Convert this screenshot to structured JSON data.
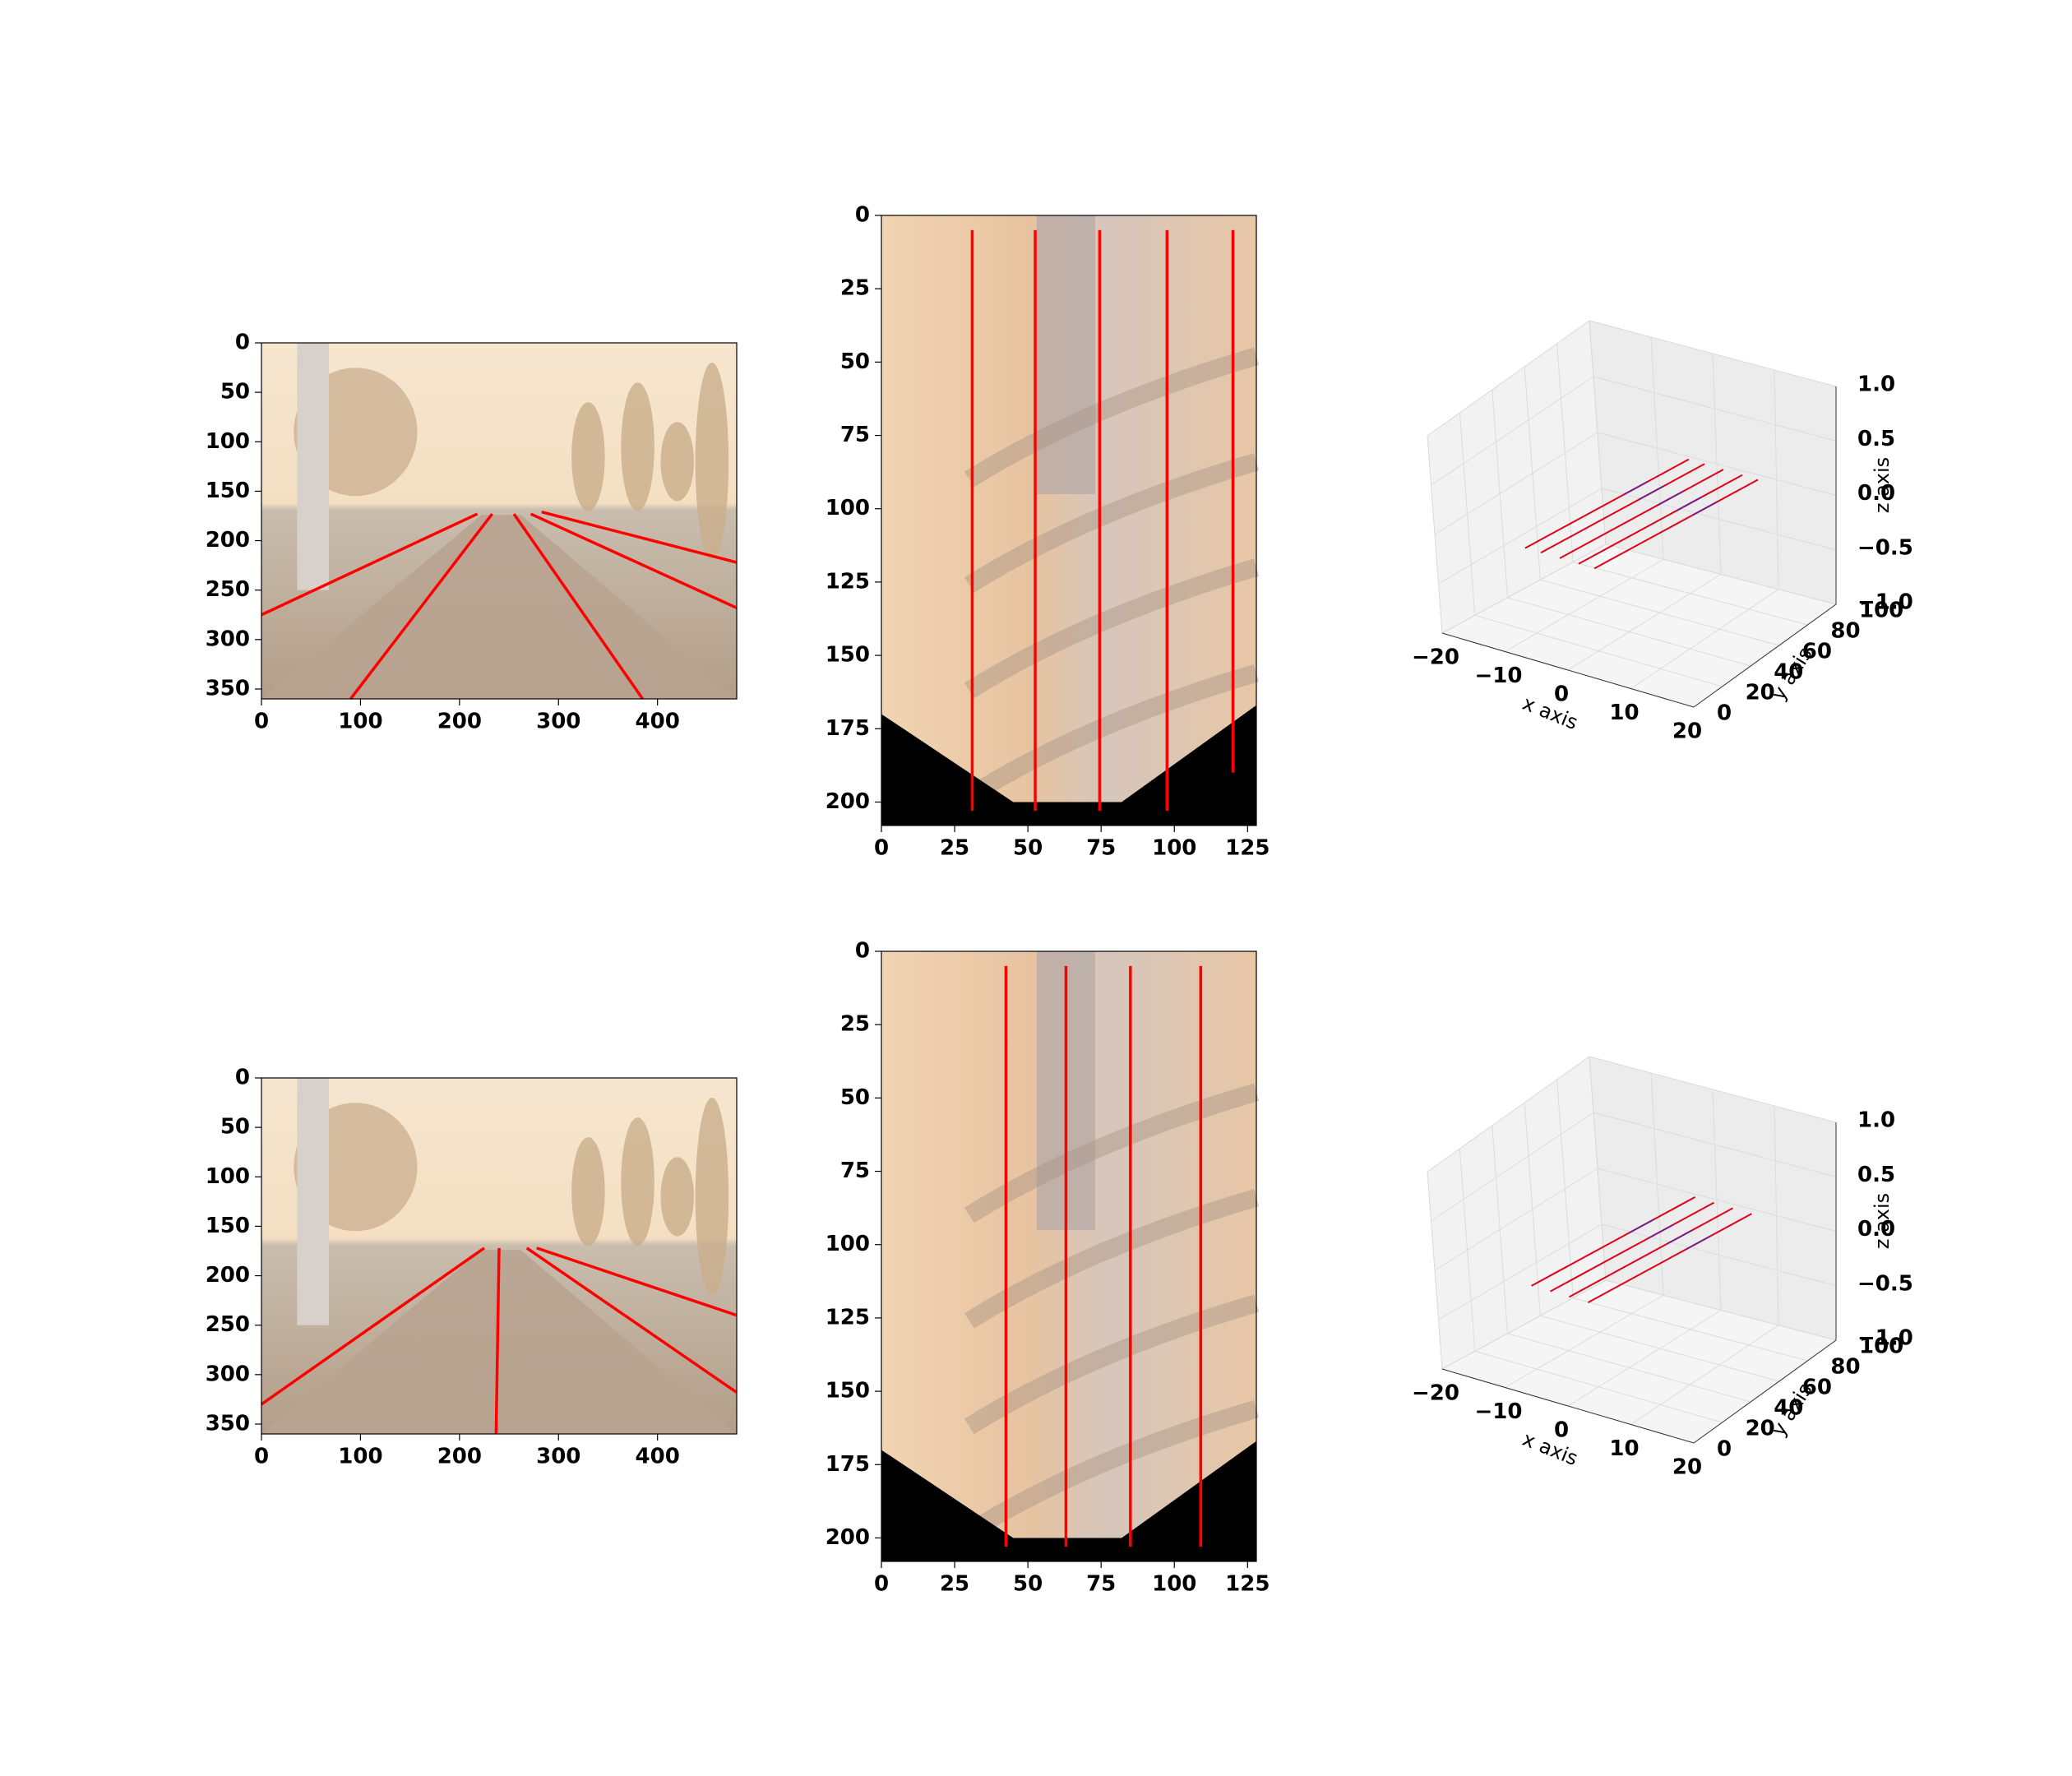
{
  "chart_data": [
    {
      "type": "image",
      "row": 0,
      "view": "front-camera",
      "xlim": [
        0,
        480
      ],
      "ylim": [
        360,
        0
      ],
      "xticks": [
        0,
        100,
        200,
        300,
        400
      ],
      "yticks": [
        0,
        50,
        100,
        150,
        200,
        250,
        300,
        350
      ],
      "lanes": [
        {
          "color": "#ff0000",
          "points": [
            [
              0,
              275
            ],
            [
              218,
              173
            ]
          ]
        },
        {
          "color": "#ff0000",
          "points": [
            [
              90,
              360
            ],
            [
              233,
              173
            ]
          ]
        },
        {
          "color": "#ff0000",
          "points": [
            [
              255,
              173
            ],
            [
              385,
              360
            ]
          ]
        },
        {
          "color": "#ff0000",
          "points": [
            [
              272,
              173
            ],
            [
              480,
              268
            ]
          ]
        },
        {
          "color": "#ff0000",
          "points": [
            [
              283,
              171
            ],
            [
              480,
              222
            ]
          ]
        }
      ]
    },
    {
      "type": "image",
      "row": 0,
      "view": "bev",
      "xlim": [
        0,
        128
      ],
      "ylim": [
        208,
        0
      ],
      "xticks": [
        0,
        25,
        50,
        75,
        100,
        125
      ],
      "yticks": [
        0,
        25,
        50,
        75,
        100,
        125,
        150,
        175,
        200
      ],
      "lanes": [
        {
          "color": "#ff0000",
          "points": [
            [
              31,
              5
            ],
            [
              31,
              203
            ]
          ]
        },
        {
          "color": "#ff0000",
          "points": [
            [
              52.5,
              5
            ],
            [
              52.5,
              203
            ]
          ]
        },
        {
          "color": "#ff0000",
          "points": [
            [
              74.5,
              5
            ],
            [
              74.5,
              203
            ]
          ]
        },
        {
          "color": "#ff0000",
          "points": [
            [
              97.5,
              5
            ],
            [
              97.5,
              203
            ]
          ]
        },
        {
          "color": "#ff0000",
          "points": [
            [
              120,
              5
            ],
            [
              120,
              190
            ]
          ]
        }
      ]
    },
    {
      "type": "line3d",
      "row": 0,
      "xlabel": "x axis",
      "ylabel": "y axis",
      "zlabel": "z axis",
      "xlim": [
        -20,
        20
      ],
      "ylim": [
        0,
        100
      ],
      "zlim": [
        -1,
        1
      ],
      "xticks": [
        "−20",
        "−10",
        "0",
        "10",
        "20"
      ],
      "yticks": [
        "0",
        "20",
        "40",
        "60",
        "80",
        "100"
      ],
      "zticks": [
        "−1.0",
        "−0.5",
        "0.0",
        "0.5",
        "1.0"
      ],
      "lanes": [
        {
          "x": -5.5,
          "y": [
            0,
            100
          ],
          "z": 0
        },
        {
          "x": -3.0,
          "y": [
            0,
            100
          ],
          "z": 0
        },
        {
          "x": 0.0,
          "y": [
            0,
            100
          ],
          "z": 0
        },
        {
          "x": 3.0,
          "y": [
            0,
            100
          ],
          "z": 0
        },
        {
          "x": 5.5,
          "y": [
            0,
            100
          ],
          "z": 0
        }
      ]
    },
    {
      "type": "image",
      "row": 1,
      "view": "front-camera",
      "xlim": [
        0,
        480
      ],
      "ylim": [
        360,
        0
      ],
      "xticks": [
        0,
        100,
        200,
        300,
        400
      ],
      "yticks": [
        0,
        50,
        100,
        150,
        200,
        250,
        300,
        350
      ],
      "lanes": [
        {
          "color": "#ff0000",
          "points": [
            [
              0,
              330
            ],
            [
              225,
              172
            ]
          ]
        },
        {
          "color": "#ff0000",
          "points": [
            [
              237,
              360
            ],
            [
              240,
              172
            ]
          ]
        },
        {
          "color": "#ff0000",
          "points": [
            [
              268,
              172
            ],
            [
              480,
              318
            ]
          ]
        },
        {
          "color": "#ff0000",
          "points": [
            [
              278,
              172
            ],
            [
              480,
              240
            ]
          ]
        }
      ]
    },
    {
      "type": "image",
      "row": 1,
      "view": "bev",
      "xlim": [
        0,
        128
      ],
      "ylim": [
        208,
        0
      ],
      "xticks": [
        0,
        25,
        50,
        75,
        100,
        125
      ],
      "yticks": [
        0,
        25,
        50,
        75,
        100,
        125,
        150,
        175,
        200
      ],
      "lanes": [
        {
          "color": "#ff0000",
          "points": [
            [
              42.5,
              5
            ],
            [
              42.5,
              203
            ]
          ]
        },
        {
          "color": "#ff0000",
          "points": [
            [
              63,
              5
            ],
            [
              63,
              203
            ]
          ]
        },
        {
          "color": "#ff0000",
          "points": [
            [
              85,
              5
            ],
            [
              85,
              203
            ]
          ]
        },
        {
          "color": "#ff0000",
          "points": [
            [
              109,
              5
            ],
            [
              109,
              203
            ]
          ]
        }
      ]
    },
    {
      "type": "line3d",
      "row": 1,
      "xlabel": "x axis",
      "ylabel": "y axis",
      "zlabel": "z axis",
      "xlim": [
        -20,
        20
      ],
      "ylim": [
        0,
        100
      ],
      "zlim": [
        -1,
        1
      ],
      "xticks": [
        "−20",
        "−10",
        "0",
        "10",
        "20"
      ],
      "yticks": [
        "0",
        "20",
        "40",
        "60",
        "80",
        "100"
      ],
      "zticks": [
        "−1.0",
        "−0.5",
        "0.0",
        "0.5",
        "1.0"
      ],
      "lanes": [
        {
          "x": -4.5,
          "y": [
            0,
            100
          ],
          "z": 0
        },
        {
          "x": -1.5,
          "y": [
            0,
            100
          ],
          "z": 0
        },
        {
          "x": 1.5,
          "y": [
            0,
            100
          ],
          "z": 0
        },
        {
          "x": 4.5,
          "y": [
            0,
            100
          ],
          "z": 0
        }
      ]
    }
  ]
}
